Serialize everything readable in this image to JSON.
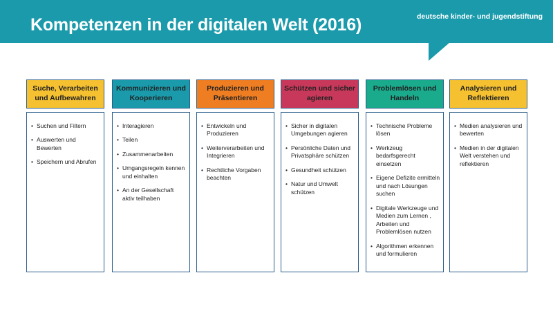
{
  "header": {
    "title": "Kompetenzen in der digitalen Welt (2016)",
    "logo": "deutsche kinder- und jugendstiftung"
  },
  "columns": [
    {
      "title": "Suche, Verarbeiten und Aufbewahren",
      "items": [
        "Suchen und Filtern",
        "Auswerten und Bewerten",
        "Speichern und Abrufen"
      ]
    },
    {
      "title": "Kommunizieren und Kooperieren",
      "items": [
        "Interagieren",
        "Teilen",
        "Zusammenarbeiten",
        "Umgangsregeln kennen und einhalten",
        "An der Gesellschaft aktiv teilhaben"
      ]
    },
    {
      "title": "Produzieren und Präsentieren",
      "items": [
        "Entwickeln und Produzieren",
        "Weiterverarbeiten und Integrieren",
        "Rechtliche Vorgaben beachten"
      ]
    },
    {
      "title": "Schützen und sicher agieren",
      "items": [
        "Sicher in digitalen Umgebungen agieren",
        "Persönliche Daten und Privatsphäre schützen",
        "Gesundheit schützen",
        "Natur und Umwelt schützen"
      ]
    },
    {
      "title": "Problemlösen und Handeln",
      "items": [
        "Technische Probleme lösen",
        "Werkzeug bedarfsgerecht einsetzen",
        "Eigene Defizite ermitteln und nach Lösungen suchen",
        "Digitale Werkzeuge und Medien zum Lernen , Arbeiten und Problemlösen nutzen",
        "Algorithmen erkennen und formulieren"
      ]
    },
    {
      "title": "Analysieren und Reflektieren",
      "items": [
        "Medien analysieren und bewerten",
        "Medien in der digitalen Welt verstehen und reflektieren"
      ]
    }
  ]
}
